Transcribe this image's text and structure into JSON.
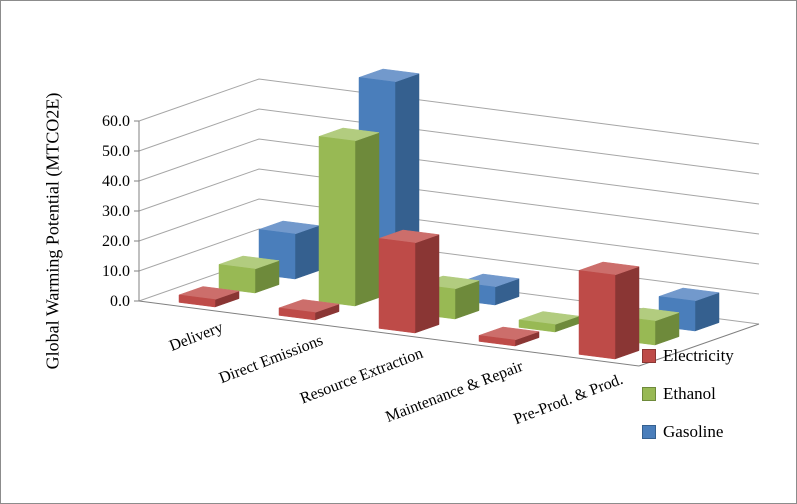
{
  "figure": {
    "background": "#FFFFFF",
    "border_color": "#8C8C8C"
  },
  "chart_data": {
    "type": "bar",
    "style": "3d-column",
    "title": "",
    "xlabel": "",
    "ylabel": "Global Warming Potential (MTCO2E)",
    "ylim": [
      0,
      60
    ],
    "ytick_step": 10,
    "ytick_labels": [
      "0.0",
      "10.0",
      "20.0",
      "30.0",
      "40.0",
      "50.0",
      "60.0"
    ],
    "grid": true,
    "gridline_color": "#A6A6A6",
    "axis_color": "#808080",
    "text_color": "#000000",
    "legend_position": "right",
    "categories": [
      "Delivery",
      "Direct Emissions",
      "Resource Extraction",
      "Maintenance & Repair",
      "Pre-Prod. & Prod."
    ],
    "series": [
      {
        "name": "Electricity",
        "color": "#BE4B48",
        "side_color": "#8A3634",
        "top_color": "#CC6E6B",
        "values": [
          2.5,
          2.5,
          30.0,
          2.0,
          28.0
        ]
      },
      {
        "name": "Ethanol",
        "color": "#98B954",
        "side_color": "#6E8A3B",
        "top_color": "#B2CC7F",
        "values": [
          8.0,
          55.0,
          10.0,
          2.5,
          8.0
        ]
      },
      {
        "name": "Gasoline",
        "color": "#4A7EBB",
        "side_color": "#35608F",
        "top_color": "#7299CC",
        "values": [
          15.0,
          70.0,
          6.0,
          0.0,
          10.0
        ]
      }
    ]
  }
}
